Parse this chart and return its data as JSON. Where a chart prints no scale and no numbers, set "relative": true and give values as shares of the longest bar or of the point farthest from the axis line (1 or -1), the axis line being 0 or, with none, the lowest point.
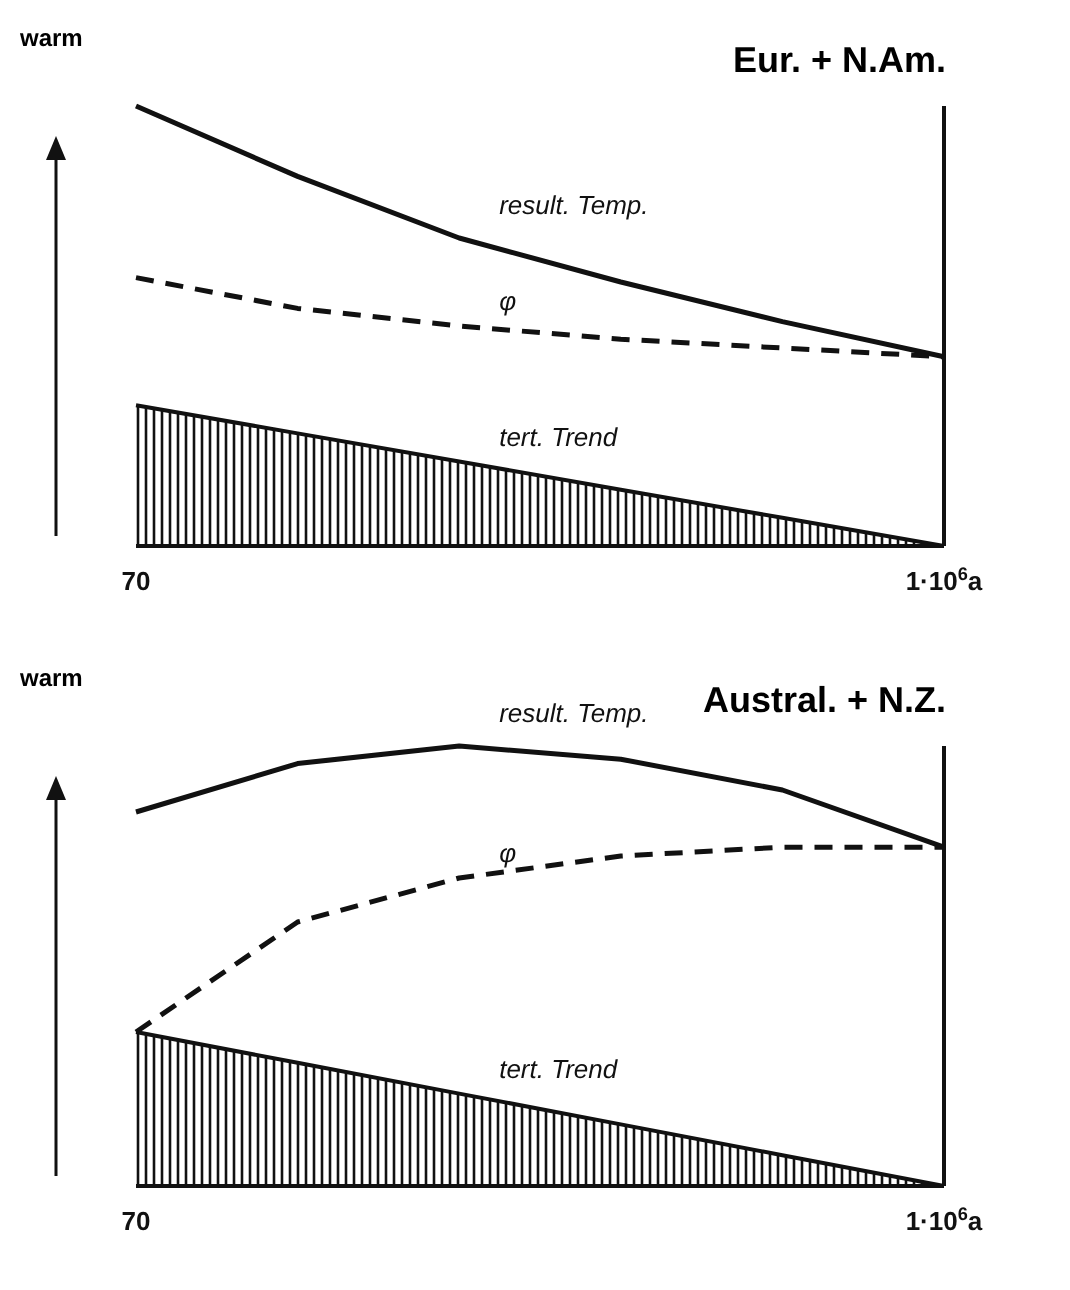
{
  "chart_data": [
    {
      "type": "line",
      "title": "Eur. + N.Am.",
      "ylabel": "warm",
      "relative": true,
      "categories": [
        "70",
        null,
        null,
        null,
        null,
        "1·10$^{6}$a"
      ],
      "marker": "none",
      "legend": false,
      "series": [
        {
          "name": "result. Temp.",
          "color": "#111111",
          "line_style": "solid",
          "values": [
            1,
            0.84,
            0.7,
            0.6,
            0.51,
            0.43
          ]
        },
        {
          "name": "φ",
          "color": "#111111",
          "line_style": "dashed",
          "values": [
            0.61,
            0.54,
            0.5,
            0.47,
            0.45,
            0.43
          ]
        },
        {
          "name": "tert. Trend",
          "type": "area",
          "color": "#111111",
          "values": [
            0.32,
            0.256,
            0.192,
            0.128,
            0.064,
            0
          ]
        }
      ]
    },
    {
      "type": "line",
      "title": "Austral. + N.Z.",
      "ylabel": "warm",
      "relative": true,
      "categories": [
        "70",
        null,
        null,
        null,
        null,
        "1·10$^{6}$a"
      ],
      "marker": "none",
      "legend": false,
      "series": [
        {
          "name": "result. Temp.",
          "color": "#111111",
          "line_style": "solid",
          "values": [
            0.85,
            0.96,
            1,
            0.97,
            0.9,
            0.77
          ]
        },
        {
          "name": "φ",
          "color": "#111111",
          "line_style": "dashed",
          "values": [
            0.35,
            0.6,
            0.7,
            0.75,
            0.77,
            0.77
          ]
        },
        {
          "name": "tert. Trend",
          "type": "area",
          "color": "#111111",
          "values": [
            0.35,
            0.28,
            0.21,
            0.14,
            0.07,
            0
          ]
        }
      ]
    }
  ]
}
